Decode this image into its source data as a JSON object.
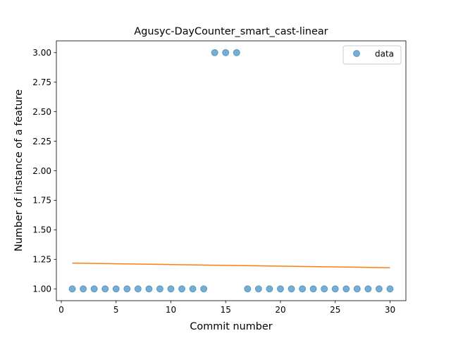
{
  "chart_data": {
    "type": "scatter",
    "title": "Agusyc-DayCounter_smart_cast-linear",
    "xlabel": "Commit number",
    "ylabel": "Number of instance of a feature",
    "xlim": [
      -0.45,
      31.45
    ],
    "ylim": [
      0.9,
      3.1
    ],
    "x_ticks": [
      0,
      5,
      10,
      15,
      20,
      25,
      30
    ],
    "y_ticks": [
      1.0,
      1.25,
      1.5,
      1.75,
      2.0,
      2.25,
      2.5,
      2.75,
      3.0
    ],
    "x_tick_labels": [
      "0",
      "5",
      "10",
      "15",
      "20",
      "25",
      "30"
    ],
    "y_tick_labels": [
      "1.00",
      "1.25",
      "1.50",
      "1.75",
      "2.00",
      "2.25",
      "2.50",
      "2.75",
      "3.00"
    ],
    "grid": false,
    "legend": {
      "position": "top-right",
      "entries": [
        "data"
      ]
    },
    "series": [
      {
        "name": "data",
        "kind": "scatter",
        "color": "#1f77b4",
        "x": [
          1,
          2,
          3,
          4,
          5,
          6,
          7,
          8,
          9,
          10,
          11,
          12,
          13,
          14,
          15,
          16,
          17,
          18,
          19,
          20,
          21,
          22,
          23,
          24,
          25,
          26,
          27,
          28,
          29,
          30
        ],
        "y": [
          1,
          1,
          1,
          1,
          1,
          1,
          1,
          1,
          1,
          1,
          1,
          1,
          1,
          3,
          3,
          3,
          1,
          1,
          1,
          1,
          1,
          1,
          1,
          1,
          1,
          1,
          1,
          1,
          1,
          1
        ]
      },
      {
        "kind": "line",
        "color": "#ff7f0e",
        "x": [
          1,
          30
        ],
        "y": [
          1.218,
          1.179
        ]
      }
    ]
  }
}
